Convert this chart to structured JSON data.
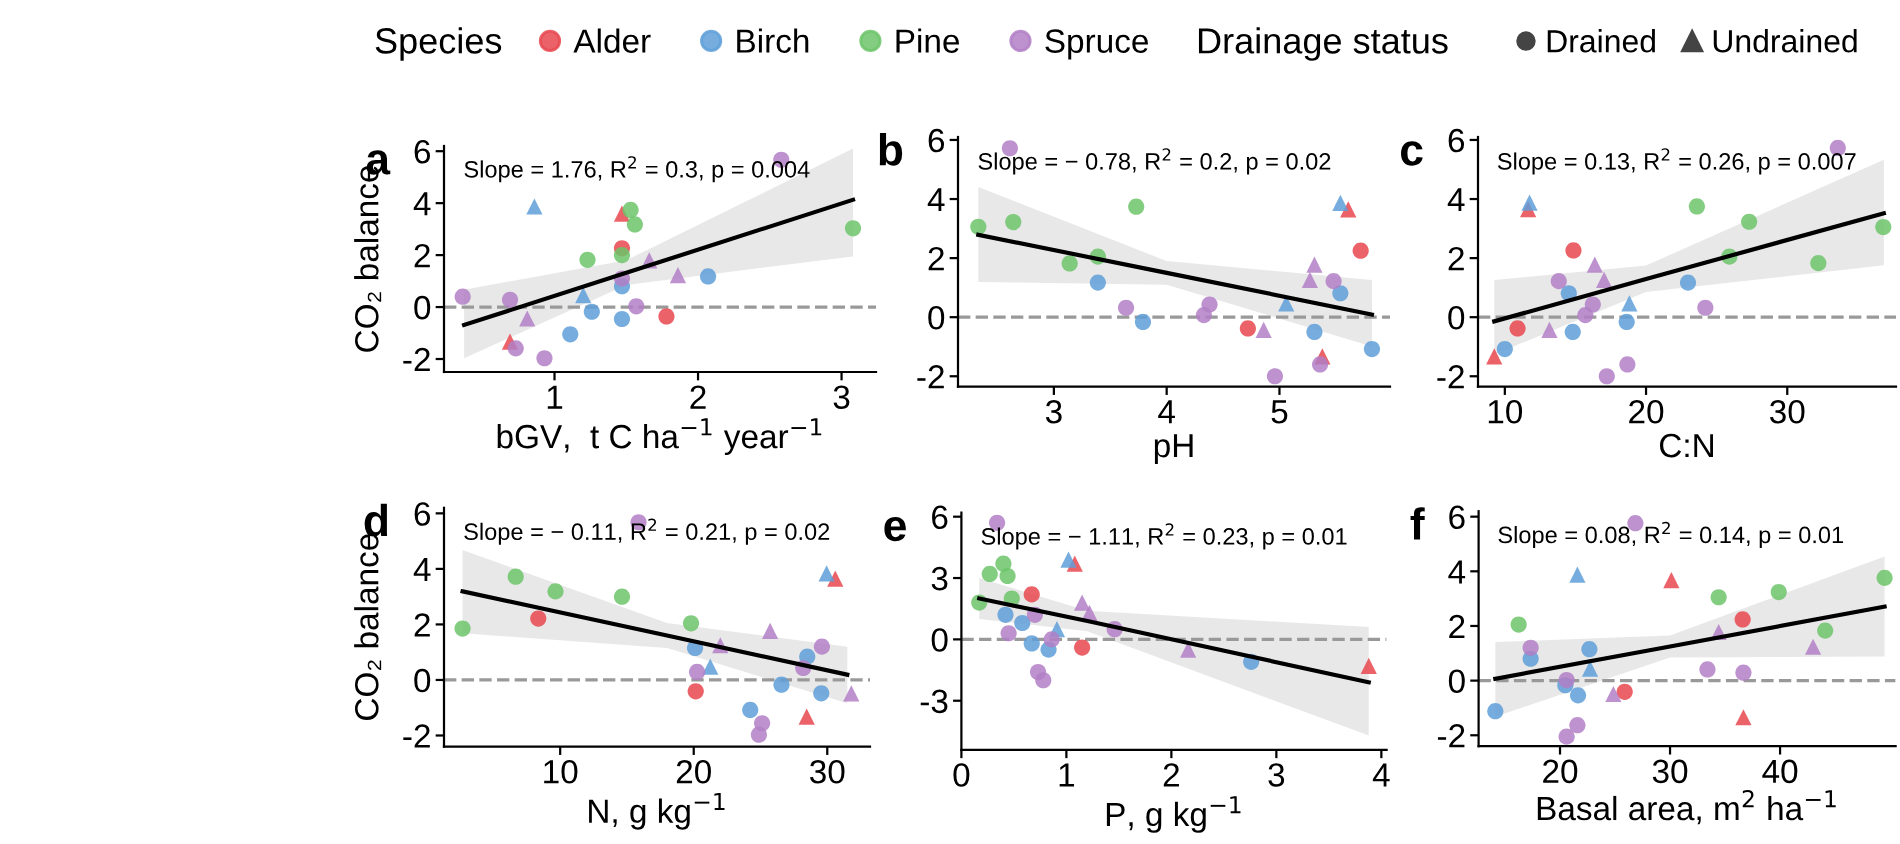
{
  "chart_data": [
    {
      "type": "scatter",
      "title": "a",
      "ylabel": "CO₂ balance",
      "xlabel": "bGV,  t C ha$^{−1}$ year$^{−1}$",
      "legend": "top",
      "legend_title": "Species",
      "annotations": [
        "Slope = 1.76, R$^{2}$ = 0.3, p = 0.004",
        "Drainage status",
        "Drained",
        "Undrained"
      ],
      "xlim": [
        0.23,
        3.24
      ],
      "ylim": [
        -2.5,
        6.2
      ],
      "xticks": [
        1,
        2,
        3
      ],
      "yticks": [
        -2,
        0,
        2,
        4,
        6
      ],
      "ref_lines": [
        {
          "axis": "y",
          "value": 0,
          "color": "#999999",
          "line_style": "dashed"
        }
      ],
      "series": [
        {
          "name": "Alder",
          "color": "#e8474f",
          "marker": "circle",
          "x": [
            1.47,
            1.78
          ],
          "values": [
            2.26,
            -0.36
          ]
        },
        {
          "color": "#e8474f",
          "marker": "triangle",
          "x": [
            1.47,
            0.69
          ],
          "values": [
            3.6,
            -1.33
          ]
        },
        {
          "name": "Birch",
          "color": "#5e9fd8",
          "marker": "circle",
          "x": [
            1.47,
            2.07,
            1.26,
            1.47,
            1.11
          ],
          "values": [
            0.8,
            1.18,
            -0.18,
            -0.46,
            -1.05
          ]
        },
        {
          "color": "#5e9fd8",
          "marker": "triangle",
          "x": [
            0.86,
            1.2
          ],
          "values": [
            3.87,
            0.46
          ]
        },
        {
          "name": "Pine",
          "color": "#6cc46a",
          "marker": "circle",
          "x": [
            1.53,
            1.56,
            1.47,
            1.23,
            3.08
          ],
          "values": [
            3.74,
            3.18,
            2.0,
            1.82,
            3.03
          ]
        },
        {
          "name": "Spruce",
          "color": "#b27fc6",
          "marker": "circle",
          "x": [
            0.36,
            0.69,
            1.47,
            1.57,
            0.73,
            0.93,
            2.58
          ],
          "values": [
            0.4,
            0.28,
            1.1,
            0.03,
            -1.59,
            -1.97,
            5.67
          ]
        },
        {
          "color": "#b27fc6",
          "marker": "triangle",
          "x": [
            1.66,
            1.86,
            0.81
          ],
          "values": [
            1.8,
            1.23,
            -0.44
          ]
        },
        {
          "type": "line",
          "color": "#000000",
          "line_style": "solid",
          "x": [
            0.37,
            1.5,
            3.08
          ],
          "values": [
            -0.69,
            1.32,
            4.13
          ],
          "lower": [
            -1.97,
            0.85,
            1.95
          ],
          "upper": [
            0.67,
            1.8,
            6.1
          ]
        }
      ]
    },
    {
      "type": "scatter",
      "title": "b",
      "xlabel": "pH",
      "annotations": [
        "Slope = − 0.78, R$^{2}$ = 0.2, p = 0.02"
      ],
      "xlim": [
        2.15,
        5.98
      ],
      "ylim": [
        -2.35,
        6.1
      ],
      "xticks": [
        3,
        4,
        5
      ],
      "yticks": [
        -2,
        0,
        2,
        4,
        6
      ],
      "ref_lines": [
        {
          "axis": "y",
          "value": 0,
          "color": "#999999",
          "line_style": "dashed"
        }
      ],
      "series": [
        {
          "color": "#e8474f",
          "marker": "circle",
          "x": [
            4.72,
            5.72
          ],
          "values": [
            -0.38,
            2.25
          ]
        },
        {
          "color": "#e8474f",
          "marker": "triangle",
          "x": [
            5.61,
            5.38
          ],
          "values": [
            3.65,
            -1.33
          ]
        },
        {
          "color": "#5e9fd8",
          "marker": "circle",
          "x": [
            3.39,
            3.79,
            5.54,
            5.31,
            5.82
          ],
          "values": [
            1.17,
            -0.16,
            0.81,
            -0.5,
            -1.08
          ]
        },
        {
          "color": "#5e9fd8",
          "marker": "triangle",
          "x": [
            5.06,
            5.54
          ],
          "values": [
            0.47,
            3.87
          ]
        },
        {
          "color": "#6cc46a",
          "marker": "circle",
          "x": [
            2.33,
            2.64,
            3.73,
            3.14,
            3.39
          ],
          "values": [
            3.06,
            3.22,
            3.74,
            1.82,
            2.05
          ]
        },
        {
          "color": "#b27fc6",
          "marker": "circle",
          "x": [
            2.61,
            3.64,
            4.38,
            4.33,
            5.48,
            5.36,
            4.96
          ],
          "values": [
            5.72,
            0.32,
            0.43,
            0.07,
            1.22,
            -1.6,
            -2.0
          ]
        },
        {
          "color": "#b27fc6",
          "marker": "triangle",
          "x": [
            4.86,
            5.31,
            5.27
          ],
          "values": [
            -0.43,
            1.78,
            1.26
          ]
        },
        {
          "type": "line",
          "color": "#000000",
          "line_style": "solid",
          "x": [
            2.33,
            4.0,
            5.82
          ],
          "values": [
            2.79,
            1.5,
            0.09
          ],
          "lower": [
            1.19,
            1.1,
            -0.99
          ],
          "upper": [
            4.41,
            1.9,
            1.26
          ]
        }
      ]
    },
    {
      "type": "scatter",
      "title": "c",
      "xlabel": "C:N",
      "annotations": [
        "Slope = 0.13, R$^{2}$ = 0.26, p = 0.007"
      ],
      "xlim": [
        8.1,
        37.7
      ],
      "ylim": [
        -2.35,
        6.1
      ],
      "xticks": [
        10,
        20,
        30
      ],
      "yticks": [
        -2,
        0,
        2,
        4,
        6
      ],
      "ref_lines": [
        {
          "axis": "y",
          "value": 0,
          "color": "#999999",
          "line_style": "dashed"
        }
      ],
      "series": [
        {
          "color": "#e8474f",
          "marker": "circle",
          "x": [
            14.86,
            10.9
          ],
          "values": [
            2.26,
            -0.38
          ]
        },
        {
          "color": "#e8474f",
          "marker": "triangle",
          "x": [
            11.65,
            9.25
          ],
          "values": [
            3.66,
            -1.33
          ]
        },
        {
          "color": "#5e9fd8",
          "marker": "circle",
          "x": [
            14.53,
            22.97,
            14.81,
            18.63,
            10.0
          ],
          "values": [
            0.81,
            1.17,
            -0.5,
            -0.16,
            -1.08
          ]
        },
        {
          "color": "#5e9fd8",
          "marker": "triangle",
          "x": [
            11.75,
            18.82
          ],
          "values": [
            3.88,
            0.47
          ]
        },
        {
          "color": "#6cc46a",
          "marker": "circle",
          "x": [
            23.6,
            27.3,
            36.8,
            25.9,
            32.2
          ],
          "values": [
            3.75,
            3.23,
            3.05,
            2.05,
            1.83
          ]
        },
        {
          "color": "#b27fc6",
          "marker": "circle",
          "x": [
            33.58,
            13.82,
            16.23,
            15.7,
            24.2,
            18.68,
            17.22
          ],
          "values": [
            5.73,
            1.22,
            0.43,
            0.07,
            0.32,
            -1.6,
            -2.0
          ]
        },
        {
          "color": "#b27fc6",
          "marker": "triangle",
          "x": [
            16.37,
            17.03,
            13.16
          ],
          "values": [
            1.78,
            1.26,
            -0.43
          ]
        },
        {
          "type": "line",
          "color": "#000000",
          "line_style": "solid",
          "x": [
            9.25,
            20,
            36.84
          ],
          "values": [
            -0.14,
            1.29,
            3.52
          ],
          "lower": [
            -1.26,
            0.85,
            1.76
          ],
          "upper": [
            1.26,
            1.75,
            5.33
          ]
        }
      ]
    },
    {
      "type": "scatter",
      "title": "d",
      "ylabel": "CO₂ balance",
      "xlabel": "N, g kg$^{−1}$",
      "annotations": [
        "Slope = − 0.11, R$^{2}$ = 0.21, p = 0.02"
      ],
      "xlim": [
        1.3,
        33.2
      ],
      "ylim": [
        -2.4,
        6.2
      ],
      "xticks": [
        10,
        20,
        30
      ],
      "yticks": [
        -2,
        0,
        2,
        4,
        6
      ],
      "ref_lines": [
        {
          "axis": "y",
          "value": 0,
          "color": "#999999",
          "line_style": "dashed"
        }
      ],
      "series": [
        {
          "color": "#e8474f",
          "marker": "circle",
          "x": [
            8.36,
            20.15
          ],
          "values": [
            2.21,
            -0.41
          ]
        },
        {
          "color": "#e8474f",
          "marker": "triangle",
          "x": [
            30.6,
            28.46
          ],
          "values": [
            3.65,
            -1.32
          ]
        },
        {
          "color": "#5e9fd8",
          "marker": "circle",
          "x": [
            20.1,
            24.23,
            26.57,
            28.5,
            29.55
          ],
          "values": [
            1.15,
            -1.08,
            -0.17,
            0.84,
            -0.48
          ]
        },
        {
          "color": "#5e9fd8",
          "marker": "triangle",
          "x": [
            21.24,
            29.95
          ],
          "values": [
            0.48,
            3.84
          ]
        },
        {
          "color": "#6cc46a",
          "marker": "circle",
          "x": [
            2.69,
            6.67,
            9.65,
            14.63,
            19.8
          ],
          "values": [
            1.85,
            3.72,
            3.19,
            3.0,
            2.04
          ]
        },
        {
          "color": "#b27fc6",
          "marker": "circle",
          "x": [
            15.87,
            20.25,
            25.12,
            24.88,
            29.6,
            28.2
          ],
          "values": [
            5.68,
            0.29,
            -1.56,
            -1.97,
            1.2,
            0.43
          ]
        },
        {
          "color": "#b27fc6",
          "marker": "triangle",
          "x": [
            21.99,
            25.72,
            31.8
          ],
          "values": [
            1.25,
            1.77,
            -0.48
          ]
        },
        {
          "type": "line",
          "color": "#000000",
          "line_style": "solid",
          "x": [
            2.69,
            18,
            31.5
          ],
          "values": [
            3.19,
            1.6,
            0.19
          ],
          "lower": [
            1.68,
            1.15,
            -0.84
          ],
          "upper": [
            4.68,
            2.05,
            1.2
          ]
        }
      ]
    },
    {
      "type": "scatter",
      "title": "e",
      "xlabel": "P, g kg$^{−1}$",
      "annotations": [
        "Slope = − 1.11, R$^{2}$ = 0.23, p = 0.01"
      ],
      "xlim": [
        0,
        4.05
      ],
      "ylim": [
        -5.4,
        6.2
      ],
      "xticks": [
        0,
        1,
        2,
        3,
        4
      ],
      "yticks": [
        -3,
        0,
        3,
        6
      ],
      "ref_lines": [
        {
          "axis": "y",
          "value": 0,
          "color": "#999999",
          "line_style": "dashed"
        }
      ],
      "series": [
        {
          "color": "#e8474f",
          "marker": "circle",
          "x": [
            0.67,
            1.15
          ],
          "values": [
            2.2,
            -0.4
          ]
        },
        {
          "color": "#e8474f",
          "marker": "triangle",
          "x": [
            1.08,
            3.88
          ],
          "values": [
            3.7,
            -1.3
          ]
        },
        {
          "color": "#5e9fd8",
          "marker": "circle",
          "x": [
            0.42,
            0.58,
            0.67,
            0.83,
            2.76
          ],
          "values": [
            1.2,
            0.8,
            -0.2,
            -0.5,
            -1.1
          ]
        },
        {
          "color": "#5e9fd8",
          "marker": "triangle",
          "x": [
            0.91,
            1.02
          ],
          "values": [
            0.5,
            3.9
          ]
        },
        {
          "color": "#6cc46a",
          "marker": "circle",
          "x": [
            0.17,
            0.27,
            0.4,
            0.44,
            0.48
          ],
          "values": [
            1.8,
            3.2,
            3.7,
            3.1,
            2.0
          ]
        },
        {
          "color": "#b27fc6",
          "marker": "circle",
          "x": [
            0.34,
            0.45,
            0.7,
            0.73,
            0.78,
            0.86,
            1.46
          ],
          "values": [
            5.7,
            0.3,
            1.2,
            -1.6,
            -2.0,
            0.0,
            0.5
          ]
        },
        {
          "color": "#b27fc6",
          "marker": "triangle",
          "x": [
            1.15,
            1.22,
            2.16
          ],
          "values": [
            1.8,
            1.3,
            -0.5
          ]
        },
        {
          "type": "line",
          "color": "#000000",
          "line_style": "solid",
          "x": [
            0.17,
            1.2,
            3.88
          ],
          "values": [
            2.0,
            0.9,
            -2.1
          ],
          "lower": [
            1.0,
            0.4,
            -4.7
          ],
          "upper": [
            3.0,
            1.4,
            0.6
          ]
        }
      ]
    },
    {
      "type": "scatter",
      "title": "f",
      "xlabel": "Basal area, m$^{2}$ ha$^{−1}$",
      "annotations": [
        "Slope = 0.08, R$^{2}$ = 0.14, p = 0.01"
      ],
      "xlim": [
        12.6,
        50.5
      ],
      "ylim": [
        -2.4,
        6.2
      ],
      "xticks": [
        20,
        30,
        40
      ],
      "yticks": [
        -2,
        0,
        2,
        4,
        6
      ],
      "ref_lines": [
        {
          "axis": "y",
          "value": 0,
          "color": "#999999",
          "line_style": "dashed"
        }
      ],
      "series": [
        {
          "color": "#e8474f",
          "marker": "circle",
          "x": [
            36.6,
            25.88
          ],
          "values": [
            2.24,
            -0.41
          ]
        },
        {
          "color": "#e8474f",
          "marker": "triangle",
          "x": [
            30.12,
            36.67
          ],
          "values": [
            3.68,
            -1.34
          ]
        },
        {
          "color": "#5e9fd8",
          "marker": "circle",
          "x": [
            17.33,
            22.67,
            20.48,
            21.64,
            14.12
          ],
          "values": [
            0.8,
            1.15,
            -0.17,
            -0.54,
            -1.12
          ]
        },
        {
          "color": "#5e9fd8",
          "marker": "triangle",
          "x": [
            21.58,
            22.73
          ],
          "values": [
            3.88,
            0.44
          ]
        },
        {
          "color": "#6cc46a",
          "marker": "circle",
          "x": [
            16.24,
            34.42,
            39.88,
            49.5,
            44.1
          ],
          "values": [
            2.05,
            3.05,
            3.24,
            3.76,
            1.83
          ]
        },
        {
          "color": "#b27fc6",
          "marker": "circle",
          "x": [
            26.85,
            17.33,
            33.4,
            36.67,
            20.6,
            21.58,
            20.6
          ],
          "values": [
            5.76,
            1.2,
            0.41,
            0.29,
            0.02,
            -1.63,
            -2.05
          ]
        },
        {
          "color": "#b27fc6",
          "marker": "triangle",
          "x": [
            34.42,
            43,
            24.85
          ],
          "values": [
            1.78,
            1.24,
            -0.49
          ]
        },
        {
          "type": "line",
          "color": "#000000",
          "line_style": "solid",
          "x": [
            14.12,
            30,
            49.5
          ],
          "values": [
            0.07,
            1.25,
            2.71
          ],
          "lower": [
            -1.32,
            0.85,
            0.88
          ],
          "upper": [
            1.41,
            1.65,
            4.54
          ]
        }
      ]
    }
  ]
}
